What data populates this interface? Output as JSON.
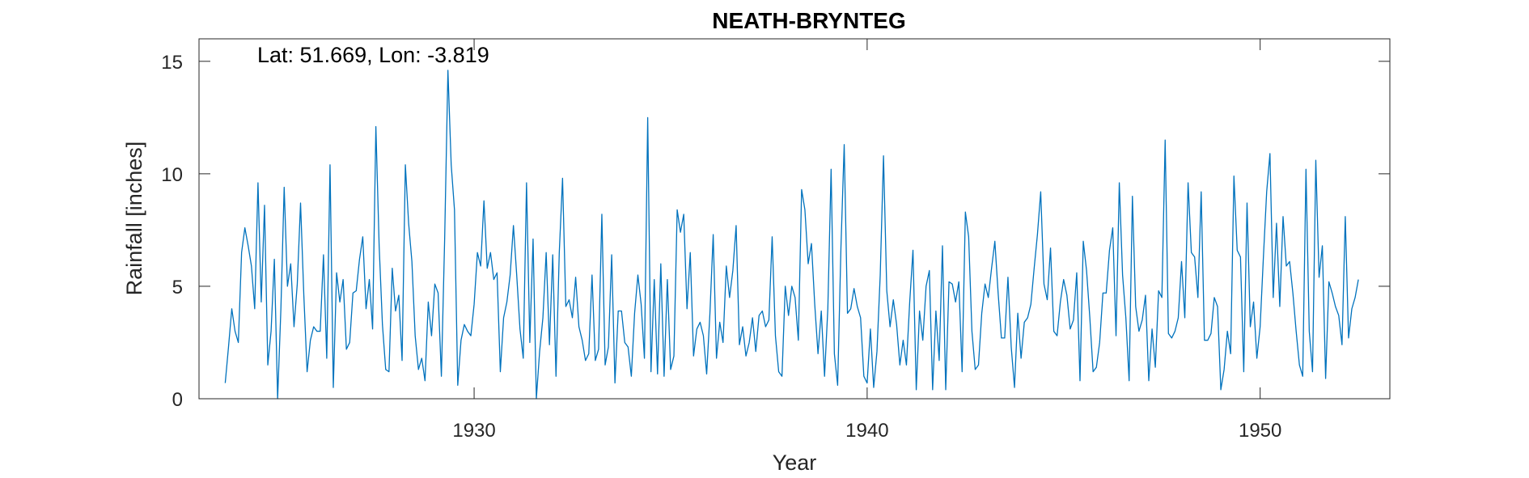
{
  "chart_data": {
    "type": "line",
    "title": "NEATH-BRYNTEG",
    "xlabel": "Year",
    "ylabel": "Rainfall [inches]",
    "annotation": "Lat: 51.669, Lon: -3.819",
    "xlim": [
      1923.0,
      1953.3
    ],
    "ylim": [
      0,
      16
    ],
    "xticks": [
      1930,
      1940,
      1950
    ],
    "yticks": [
      0,
      5,
      10,
      15
    ],
    "grid": false,
    "series_color": "#0072BD",
    "series": [
      {
        "start_year": 1923.667,
        "step_years": 0.08333,
        "values": [
          0.7,
          2.3,
          4.0,
          3.0,
          2.5,
          6.5,
          7.6,
          6.8,
          5.9,
          4.0,
          9.6,
          4.3,
          8.6,
          1.5,
          3.0,
          6.2,
          0.0,
          4.0,
          9.4,
          5.0,
          6.0,
          3.2,
          5.1,
          8.7,
          4.6,
          1.2,
          2.6,
          3.2,
          3.0,
          3.0,
          6.4,
          1.8,
          10.4,
          0.5,
          5.6,
          4.3,
          5.3,
          2.2,
          2.5,
          4.7,
          4.8,
          6.2,
          7.2,
          4.0,
          5.3,
          3.1,
          12.1,
          6.8,
          3.3,
          1.3,
          1.2,
          5.8,
          3.9,
          4.6,
          1.7,
          10.4,
          7.8,
          6.1,
          2.8,
          1.3,
          1.8,
          0.8,
          4.3,
          2.8,
          5.1,
          4.7,
          1.0,
          7.1,
          14.6,
          10.4,
          8.4,
          0.6,
          2.6,
          3.3,
          3.0,
          2.8,
          4.2,
          6.5,
          5.9,
          8.8,
          5.8,
          6.5,
          5.3,
          5.6,
          1.2,
          3.6,
          4.3,
          5.5,
          7.7,
          5.5,
          3.1,
          1.8,
          9.6,
          2.5,
          7.1,
          0.0,
          2.1,
          3.6,
          6.5,
          2.4,
          6.4,
          1.0,
          6.5,
          9.8,
          4.1,
          4.4,
          3.6,
          5.4,
          3.2,
          2.6,
          1.7,
          2.0,
          5.5,
          1.7,
          2.2,
          8.2,
          1.5,
          2.3,
          6.4,
          0.7,
          3.9,
          3.9,
          2.5,
          2.3,
          1.0,
          3.8,
          5.5,
          4.2,
          1.8,
          12.5,
          1.2,
          5.3,
          1.1,
          6.0,
          1.0,
          5.3,
          1.3,
          1.9,
          8.4,
          7.4,
          8.2,
          4.0,
          6.5,
          1.9,
          3.1,
          3.4,
          2.8,
          1.1,
          3.8,
          7.3,
          1.8,
          3.4,
          2.5,
          5.9,
          4.5,
          5.7,
          7.7,
          2.4,
          3.2,
          1.9,
          2.5,
          3.6,
          2.1,
          3.7,
          3.9,
          3.2,
          3.5,
          7.2,
          2.8,
          1.2,
          1.0,
          5.0,
          3.7,
          5.0,
          4.5,
          2.6,
          9.3,
          8.4,
          6.0,
          6.9,
          4.2,
          2.0,
          3.9,
          1.0,
          4.0,
          10.2,
          2.0,
          0.6,
          6.7,
          11.3,
          3.8,
          4.0,
          4.9,
          4.1,
          3.6,
          1.0,
          0.7,
          3.1,
          0.5,
          2.1,
          5.5,
          10.8,
          4.8,
          3.2,
          4.4,
          3.3,
          1.5,
          2.6,
          1.5,
          4.3,
          6.6,
          0.4,
          3.9,
          2.6,
          5.0,
          5.7,
          0.4,
          3.9,
          1.7,
          6.8,
          0.4,
          5.2,
          5.1,
          4.3,
          5.2,
          1.2,
          8.3,
          7.2,
          3.0,
          1.3,
          1.5,
          3.8,
          5.1,
          4.5,
          5.8,
          7.0,
          4.7,
          2.7,
          2.7,
          5.4,
          2.3,
          0.5,
          3.8,
          1.8,
          3.4,
          3.6,
          4.2,
          5.8,
          7.3,
          9.2,
          5.1,
          4.4,
          6.7,
          3.0,
          2.8,
          4.3,
          5.3,
          4.6,
          3.1,
          3.5,
          5.6,
          0.8,
          7.0,
          5.7,
          3.6,
          1.2,
          1.4,
          2.5,
          4.7,
          4.7,
          6.6,
          7.6,
          2.8,
          9.6,
          5.5,
          3.6,
          0.8,
          9.0,
          4.1,
          3.0,
          3.5,
          4.6,
          0.8,
          3.1,
          1.4,
          4.8,
          4.5,
          11.5,
          2.9,
          2.7,
          3.0,
          3.6,
          6.1,
          3.6,
          9.6,
          6.5,
          6.3,
          4.5,
          9.2,
          2.6,
          2.6,
          2.9,
          4.5,
          4.1,
          0.4,
          1.3,
          3.0,
          2.0,
          9.9,
          6.6,
          6.3,
          1.2,
          8.7,
          3.2,
          4.3,
          1.8,
          3.2,
          6.3,
          9.2,
          10.9,
          4.5,
          7.8,
          4.1,
          8.1,
          5.9,
          6.1,
          4.7,
          3.0,
          1.5,
          1.0,
          10.2,
          3.0,
          1.2,
          10.6,
          5.4,
          6.8,
          0.9,
          5.2,
          4.7,
          4.1,
          3.7,
          2.4,
          8.1,
          2.7,
          4.0,
          4.5,
          5.3
        ]
      }
    ]
  }
}
